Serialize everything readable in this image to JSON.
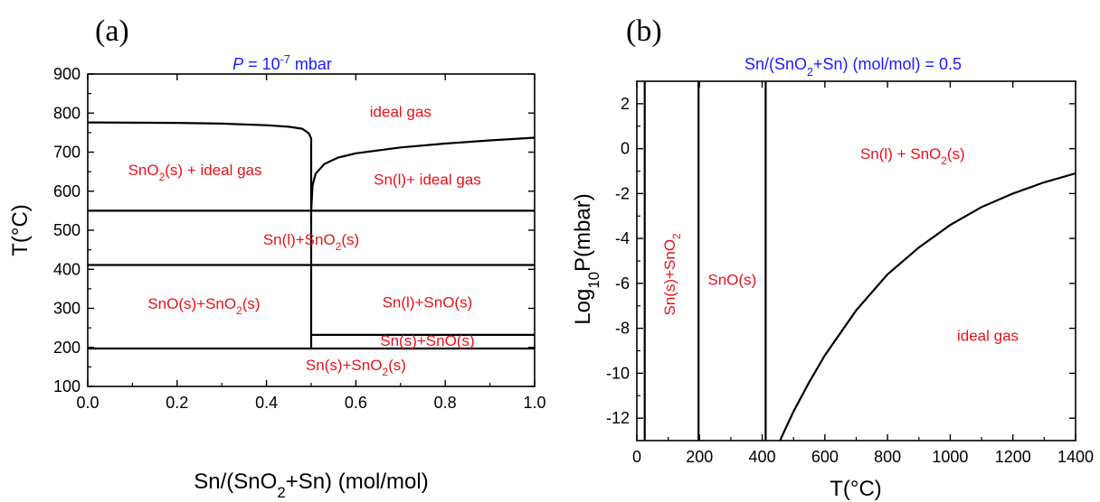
{
  "chart_data": [
    {
      "panel": "(a)",
      "type": "line",
      "title": {
        "pre": "",
        "italic": "P",
        "mid": " = 10",
        "sup": "-7",
        "post": " mbar"
      },
      "xlabel": {
        "pre": "Sn/(SnO",
        "sub": "2",
        "post": "+Sn) (mol/mol)"
      },
      "ylabel": "T(°C)",
      "xlim": [
        0.0,
        1.0
      ],
      "ylim": [
        100,
        900
      ],
      "xticks": [
        0.0,
        0.2,
        0.4,
        0.6,
        0.8,
        1.0
      ],
      "xtick_labels": [
        "0.0",
        "0.2",
        "0.4",
        "0.6",
        "0.8",
        "1.0"
      ],
      "yticks": [
        100,
        200,
        300,
        400,
        500,
        600,
        700,
        800,
        900
      ],
      "ytick_labels": [
        "100",
        "200",
        "300",
        "400",
        "500",
        "600",
        "700",
        "800",
        "900"
      ],
      "boundaries": [
        {
          "points": [
            [
              0.0,
              776
            ],
            [
              0.2,
              775
            ],
            [
              0.3,
              773
            ],
            [
              0.4,
              769
            ],
            [
              0.45,
              765
            ],
            [
              0.48,
              760
            ],
            [
              0.495,
              748
            ],
            [
              0.5,
              735
            ],
            [
              0.5,
              550
            ]
          ]
        },
        {
          "points": [
            [
              0.5,
              550
            ],
            [
              0.503,
              615
            ],
            [
              0.51,
              645
            ],
            [
              0.53,
              670
            ],
            [
              0.56,
              686
            ],
            [
              0.6,
              697
            ],
            [
              0.7,
              712
            ],
            [
              0.8,
              722
            ],
            [
              0.9,
              730
            ],
            [
              1.0,
              737
            ]
          ]
        },
        {
          "points": [
            [
              0.0,
              550
            ],
            [
              1.0,
              550
            ]
          ]
        },
        {
          "points": [
            [
              0.0,
              411
            ],
            [
              1.0,
              411
            ]
          ]
        },
        {
          "points": [
            [
              0.5,
              550
            ],
            [
              0.5,
              197
            ]
          ]
        },
        {
          "points": [
            [
              0.5,
              232
            ],
            [
              1.0,
              232
            ]
          ]
        },
        {
          "points": [
            [
              0.0,
              197
            ],
            [
              1.0,
              197
            ]
          ]
        }
      ],
      "regions": [
        {
          "label": [
            {
              "t": "ideal gas"
            }
          ],
          "x": 0.7,
          "y": 800
        },
        {
          "label": [
            {
              "t": "SnO"
            },
            {
              "t": "2",
              "sub": true
            },
            {
              "t": "(s) + ideal gas"
            }
          ],
          "x": 0.24,
          "y": 650
        },
        {
          "label": [
            {
              "t": "Sn(l)+ ideal gas"
            }
          ],
          "x": 0.76,
          "y": 626
        },
        {
          "label": [
            {
              "t": "Sn(l)+SnO"
            },
            {
              "t": "2",
              "sub": true
            },
            {
              "t": "(s)"
            }
          ],
          "x": 0.5,
          "y": 472
        },
        {
          "label": [
            {
              "t": "SnO(s)+SnO"
            },
            {
              "t": "2",
              "sub": true
            },
            {
              "t": "(s)"
            }
          ],
          "x": 0.26,
          "y": 308
        },
        {
          "label": [
            {
              "t": "Sn(l)+SnO(s)"
            }
          ],
          "x": 0.76,
          "y": 312
        },
        {
          "label": [
            {
              "t": "Sn(s)+SnO(s)"
            }
          ],
          "x": 0.76,
          "y": 213
        },
        {
          "label": [
            {
              "t": "Sn(s)+SnO"
            },
            {
              "t": "2",
              "sub": true
            },
            {
              "t": "(s)"
            }
          ],
          "x": 0.6,
          "y": 151
        }
      ]
    },
    {
      "panel": "(b)",
      "type": "line",
      "title": {
        "pre": "Sn/(SnO",
        "sub": "2",
        "post": "+Sn) (mol/mol) =  0.5"
      },
      "xlabel": "T(°C)",
      "ylabel": {
        "pre": "Log",
        "sub": "10",
        "post": "P(mbar)"
      },
      "xlim": [
        0,
        1400
      ],
      "ylim": [
        -13,
        3
      ],
      "xticks": [
        0,
        200,
        400,
        600,
        800,
        1000,
        1200,
        1400
      ],
      "xtick_labels": [
        "0",
        "200",
        "400",
        "600",
        "800",
        "1000",
        "1200",
        "1400"
      ],
      "yticks": [
        -12,
        -10,
        -8,
        -6,
        -4,
        -2,
        0,
        2
      ],
      "ytick_labels": [
        "-12",
        "-10",
        "-8",
        "-6",
        "-4",
        "-2",
        "0",
        "2"
      ],
      "boundaries": [
        {
          "points": [
            [
              25,
              -13
            ],
            [
              25,
              3
            ]
          ]
        },
        {
          "points": [
            [
              197,
              -13
            ],
            [
              197,
              3
            ]
          ]
        },
        {
          "points": [
            [
              411,
              -13
            ],
            [
              411,
              3
            ]
          ]
        },
        {
          "points": [
            [
              457,
              -13
            ],
            [
              470,
              -12.6
            ],
            [
              500,
              -11.7
            ],
            [
              550,
              -10.4
            ],
            [
              600,
              -9.2
            ],
            [
              700,
              -7.2
            ],
            [
              800,
              -5.6
            ],
            [
              900,
              -4.4
            ],
            [
              1000,
              -3.4
            ],
            [
              1100,
              -2.6
            ],
            [
              1200,
              -2.0
            ],
            [
              1300,
              -1.5
            ],
            [
              1400,
              -1.1
            ]
          ]
        }
      ],
      "regions": [
        {
          "label": [
            {
              "t": "Sn(l) + SnO"
            },
            {
              "t": "2",
              "sub": true
            },
            {
              "t": "(s)"
            }
          ],
          "x": 880,
          "y": -0.3
        },
        {
          "label": [
            {
              "t": "SnO(s)"
            }
          ],
          "x": 304,
          "y": -5.9
        },
        {
          "label": [
            {
              "t": "ideal gas"
            }
          ],
          "x": 1120,
          "y": -8.4
        },
        {
          "label": [
            {
              "t": "Sn(s)+SnO"
            },
            {
              "t": "2",
              "sub": true
            }
          ],
          "x": 110,
          "y": -5.6,
          "rotate": -90
        }
      ]
    }
  ]
}
